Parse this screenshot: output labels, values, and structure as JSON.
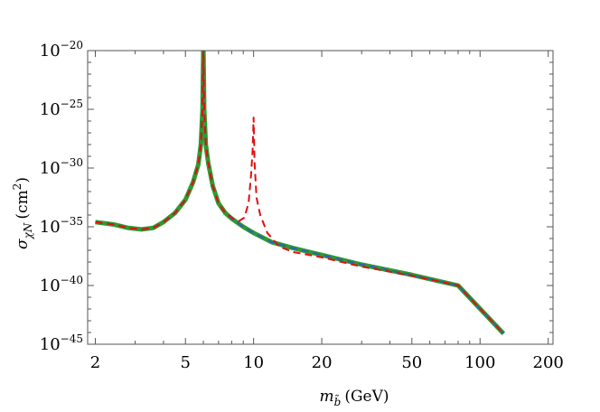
{
  "chart_data": {
    "type": "line",
    "xlabel": {
      "base": "m",
      "sub": "b̃",
      "unit": "(GeV)"
    },
    "ylabel": {
      "base": "σ",
      "sub": "χN",
      "unit_pre": "(cm",
      "unit_sup": "2",
      "unit_post": ")"
    },
    "x_scale": "log",
    "y_scale": "log",
    "xlim": [
      1.85,
      210
    ],
    "ylim": [
      1e-45,
      1e-20
    ],
    "x_ticks": [
      {
        "value": 2,
        "label": "2"
      },
      {
        "value": 5,
        "label": "5"
      },
      {
        "value": 10,
        "label": "10"
      },
      {
        "value": 20,
        "label": "20"
      },
      {
        "value": 50,
        "label": "50"
      },
      {
        "value": 100,
        "label": "100"
      },
      {
        "value": 200,
        "label": "200"
      }
    ],
    "y_ticks": [
      {
        "value": 1e-20,
        "label": "10",
        "exp": "−20"
      },
      {
        "value": 1e-25,
        "label": "10",
        "exp": "−25"
      },
      {
        "value": 1e-30,
        "label": "10",
        "exp": "−30"
      },
      {
        "value": 1e-35,
        "label": "10",
        "exp": "−35"
      },
      {
        "value": 1e-40,
        "label": "10",
        "exp": "−40"
      },
      {
        "value": 1e-45,
        "label": "10",
        "exp": "−45"
      }
    ],
    "grid": false,
    "series": [
      {
        "color": "#2e9b2e",
        "style": "solid-thick",
        "x": [
          2,
          2.4,
          2.8,
          3.2,
          3.6,
          4.0,
          4.5,
          5.0,
          5.4,
          5.7,
          5.85,
          5.95,
          6.0,
          6.05,
          6.15,
          6.3,
          6.6,
          7.0,
          7.5,
          8.0,
          9.0,
          10,
          12,
          15,
          20,
          30,
          50,
          80,
          127
        ],
        "y": [
          2.5e-35,
          1.6e-35,
          8e-36,
          6e-36,
          8e-36,
          2.5e-35,
          1.5e-34,
          2e-33,
          6e-32,
          2e-30,
          1e-28,
          1e-25,
          3e-20,
          1e-25,
          1e-28,
          3e-30,
          3e-32,
          1e-33,
          1.5e-34,
          5e-35,
          1e-35,
          3e-36,
          5e-37,
          1.5e-37,
          4e-38,
          6e-39,
          8e-40,
          1e-40,
          8e-45
        ]
      },
      {
        "color": "#2f5fb8",
        "style": "dashed",
        "x": [
          2,
          2.4,
          2.8,
          3.2,
          3.6,
          4.0,
          4.5,
          5.0,
          5.4,
          5.7,
          5.85,
          5.95,
          6.0,
          6.05,
          6.15,
          6.3,
          6.6,
          7.0,
          7.5,
          8.0,
          9.0,
          10,
          12,
          15,
          20,
          30,
          50,
          80,
          127
        ],
        "y": [
          2.5e-35,
          1.6e-35,
          8e-36,
          6e-36,
          8e-36,
          2.5e-35,
          1.5e-34,
          2e-33,
          6e-32,
          2e-30,
          1e-28,
          1e-25,
          3e-22,
          1e-25,
          1e-28,
          3e-30,
          3e-32,
          1e-33,
          1.5e-34,
          5e-35,
          1e-35,
          3e-36,
          5e-37,
          1.5e-37,
          4e-38,
          6e-39,
          8e-40,
          1e-40,
          8e-45
        ]
      },
      {
        "color": "#e01010",
        "style": "dashed",
        "x": [
          2,
          2.4,
          2.8,
          3.2,
          3.6,
          4.0,
          4.5,
          5.0,
          5.4,
          5.7,
          5.85,
          5.95,
          6.0,
          6.05,
          6.15,
          6.3,
          6.6,
          7.0,
          7.5,
          8.0,
          8.6,
          9.1,
          9.5,
          9.75,
          9.9,
          10.0,
          10.1,
          10.3,
          10.7,
          11.5,
          13,
          15,
          20,
          30,
          50,
          80,
          127
        ],
        "y": [
          2.5e-35,
          1.6e-35,
          8e-36,
          6e-36,
          8e-36,
          2.5e-35,
          1.5e-34,
          2e-33,
          6e-32,
          2e-30,
          1e-28,
          1e-25,
          3e-20,
          1e-25,
          1e-28,
          3e-30,
          3e-32,
          1e-33,
          1.5e-34,
          6e-35,
          3e-35,
          6e-35,
          1e-33,
          3e-31,
          3e-29,
          2e-26,
          3e-30,
          3e-33,
          1e-34,
          3e-36,
          2e-37,
          7e-38,
          2.5e-38,
          4e-39,
          7e-40,
          1e-40,
          8e-45
        ]
      }
    ]
  }
}
